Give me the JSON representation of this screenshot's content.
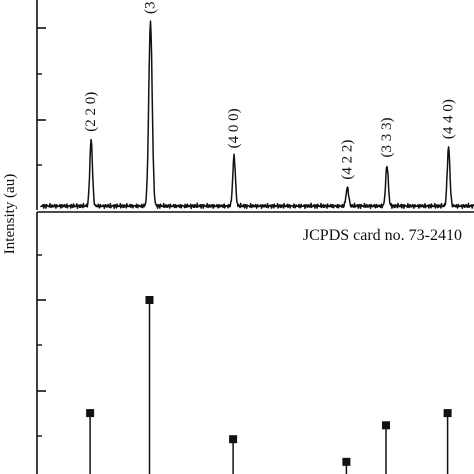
{
  "chart_data": [
    {
      "type": "line",
      "panel": "top",
      "ylabel": "Intensity (au)",
      "peaks": [
        {
          "label": "(2 2 0)",
          "x": 30.1,
          "height": 0.36
        },
        {
          "label": "(3",
          "x": 35.5,
          "height": 1.0
        },
        {
          "label": "(4 0 0)",
          "x": 43.1,
          "height": 0.27
        },
        {
          "label": "(4 2 2)",
          "x": 53.4,
          "height": 0.1
        },
        {
          "label": "(3 3 3)",
          "x": 57.0,
          "height": 0.22
        },
        {
          "label": "(4 4 0)",
          "x": 62.6,
          "height": 0.32
        }
      ],
      "grid": false
    },
    {
      "type": "bar",
      "panel": "bottom",
      "label": "JCPDS card no. 73-2410",
      "lines": [
        {
          "x": 30.1,
          "value": 35
        },
        {
          "x": 35.5,
          "value": 100
        },
        {
          "x": 43.1,
          "value": 20
        },
        {
          "x": 53.4,
          "value": 7
        },
        {
          "x": 57.0,
          "value": 28
        },
        {
          "x": 62.6,
          "value": 35
        }
      ],
      "ylim": [
        0,
        105
      ],
      "grid": false
    }
  ],
  "colors": {
    "line": "#111111",
    "background": "#ffffff"
  }
}
